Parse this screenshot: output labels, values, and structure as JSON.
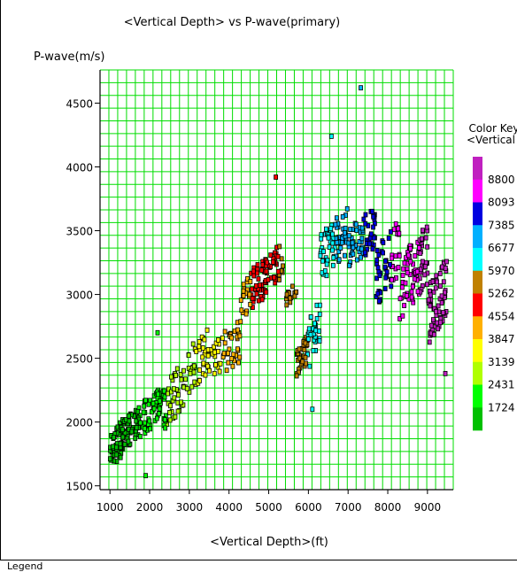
{
  "chart_data": {
    "type": "scatter",
    "title": "<Vertical Depth> vs P-wave(primary)",
    "xlabel": "<Vertical Depth>(ft)",
    "ylabel": "P-wave(m/s)",
    "xlim": [
      750,
      9650
    ],
    "ylim": [
      1470,
      4760
    ],
    "xticks": [
      "1000",
      "2000",
      "3000",
      "4000",
      "5000",
      "6000",
      "7000",
      "8000",
      "9000"
    ],
    "yticks": [
      "1500",
      "2000",
      "2500",
      "3000",
      "3500",
      "4000",
      "4500"
    ],
    "grid": true,
    "color_key": {
      "title_line1": "Color Key",
      "title_line2": "<Vertical Depth>(",
      "labels": [
        "8800",
        "8093",
        "7385",
        "6677",
        "5970",
        "5262",
        "4554",
        "3847",
        "3139",
        "2431",
        "1724"
      ],
      "colors": [
        "#c020c0",
        "#ff00ff",
        "#0000e0",
        "#00b0ff",
        "#00ffff",
        "#c08000",
        "#ff0000",
        "#ffb000",
        "#ffff00",
        "#b0ff00",
        "#00ff00",
        "#00c000"
      ]
    },
    "clusters": [
      {
        "x": [
          1000,
          1400
        ],
        "y": [
          1620,
          2050
        ],
        "n": 60
      },
      {
        "x": [
          1300,
          1900
        ],
        "y": [
          1780,
          2150
        ],
        "n": 60
      },
      {
        "x": [
          1850,
          2350
        ],
        "y": [
          1900,
          2300
        ],
        "n": 45
      },
      {
        "x": [
          2350,
          2900
        ],
        "y": [
          1920,
          2500
        ],
        "n": 45
      },
      {
        "x": [
          2900,
          3500
        ],
        "y": [
          2200,
          2750
        ],
        "n": 45
      },
      {
        "x": [
          3500,
          4300
        ],
        "y": [
          2300,
          2800
        ],
        "n": 50
      },
      {
        "x": [
          4300,
          4900
        ],
        "y": [
          2800,
          3300
        ],
        "n": 55
      },
      {
        "x": [
          4900,
          5400
        ],
        "y": [
          3000,
          3450
        ],
        "n": 45
      },
      {
        "x": [
          5400,
          5700
        ],
        "y": [
          2900,
          3100
        ],
        "n": 15
      },
      {
        "x": [
          5700,
          6000
        ],
        "y": [
          2350,
          2700
        ],
        "n": 35
      },
      {
        "x": [
          6000,
          6300
        ],
        "y": [
          2400,
          3000
        ],
        "n": 25
      },
      {
        "x": [
          6300,
          7000
        ],
        "y": [
          3100,
          3700
        ],
        "n": 70
      },
      {
        "x": [
          7000,
          7700
        ],
        "y": [
          3200,
          3700
        ],
        "n": 70
      },
      {
        "x": [
          7700,
          8300
        ],
        "y": [
          2900,
          3600
        ],
        "n": 55
      },
      {
        "x": [
          8300,
          9000
        ],
        "y": [
          2800,
          3600
        ],
        "n": 90
      },
      {
        "x": [
          9000,
          9500
        ],
        "y": [
          2600,
          3300
        ],
        "n": 70
      }
    ],
    "outliers": [
      {
        "x": 7320,
        "y": 4620
      },
      {
        "x": 6580,
        "y": 4240
      },
      {
        "x": 5180,
        "y": 3920
      },
      {
        "x": 6100,
        "y": 2100
      },
      {
        "x": 9450,
        "y": 2380
      },
      {
        "x": 1900,
        "y": 1580
      },
      {
        "x": 2200,
        "y": 2700
      }
    ]
  },
  "legend": {
    "label": "Legend"
  }
}
